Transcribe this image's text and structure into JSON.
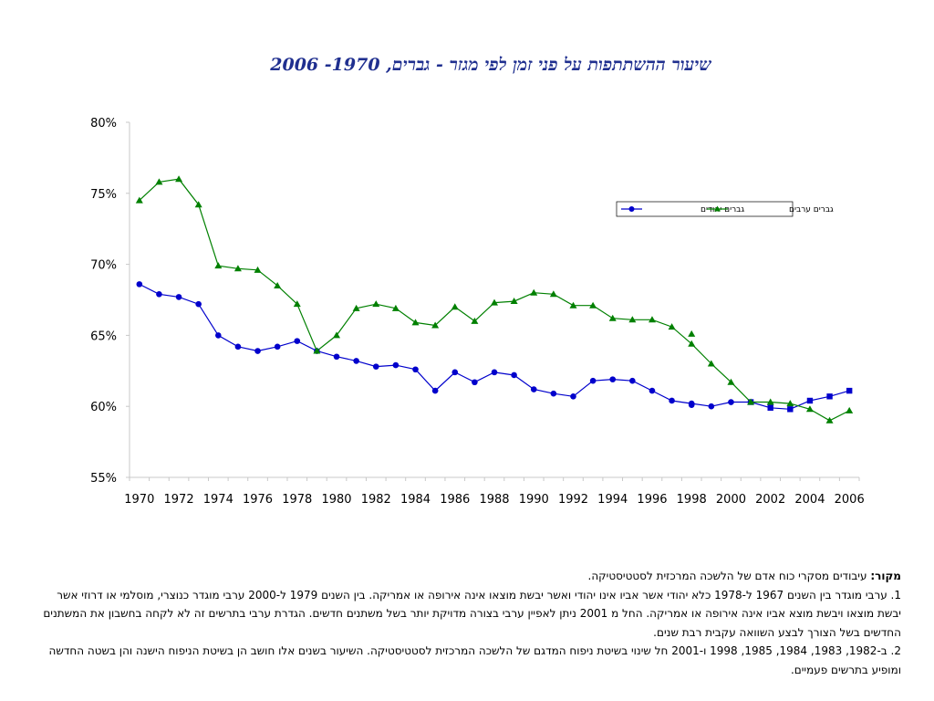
{
  "title": "שיעור ההשתתפות על פני זמן לפי מגזר - גברים, 1970- 2006",
  "chart_data": {
    "type": "line",
    "title": "שיעור ההשתתפות על פני זמן לפי מגזר - גברים, 1970- 2006",
    "x": [
      1970,
      1971,
      1972,
      1973,
      1974,
      1975,
      1976,
      1977,
      1978,
      1979,
      1980,
      1981,
      1982,
      1983,
      1984,
      1985,
      1986,
      1987,
      1988,
      1989,
      1990,
      1991,
      1992,
      1993,
      1994,
      1995,
      1996,
      1997,
      1998,
      1999,
      2000,
      2001,
      2002,
      2003,
      2004,
      2005,
      2006
    ],
    "x_ticks": [
      "1970",
      "1972",
      "1974",
      "1976",
      "1978",
      "1980",
      "1982",
      "1984",
      "1986",
      "1988",
      "1990",
      "1992",
      "1994",
      "1996",
      "1998",
      "2000",
      "2002",
      "2004",
      "2006"
    ],
    "y_ticks": [
      "80%",
      "75%",
      "70%",
      "65%",
      "60%",
      "55%"
    ],
    "ylim": [
      55,
      80
    ],
    "y_unit": "%",
    "grid": false,
    "legend_position": "top-right",
    "series": [
      {
        "name": "גברים יהודים",
        "color": "#0000cc",
        "marker": "circle",
        "marker_late": "square",
        "values": [
          68.6,
          67.9,
          67.7,
          67.2,
          65.0,
          64.2,
          63.9,
          64.2,
          64.6,
          63.9,
          63.5,
          63.2,
          62.8,
          62.9,
          62.6,
          61.1,
          62.4,
          61.7,
          62.4,
          62.2,
          61.2,
          60.9,
          60.7,
          61.8,
          61.9,
          61.8,
          61.1,
          60.4,
          60.2,
          60.0,
          60.3,
          60.3,
          59.9,
          59.8,
          60.4,
          60.7,
          61.1
        ],
        "extra_points": [
          {
            "x": 1998,
            "y": 60.1
          }
        ]
      },
      {
        "name": "גברים ערבים",
        "color": "#008000",
        "marker": "triangle",
        "values": [
          74.5,
          75.8,
          76.0,
          74.2,
          69.9,
          69.7,
          69.6,
          68.5,
          67.2,
          63.9,
          65.0,
          66.9,
          67.2,
          66.9,
          65.9,
          65.7,
          67.0,
          66.0,
          67.3,
          67.4,
          68.0,
          67.9,
          67.1,
          67.1,
          66.2,
          66.1,
          66.1,
          65.6,
          64.4,
          63.0,
          61.7,
          60.3,
          60.3,
          60.2,
          59.8,
          59.0,
          59.7
        ],
        "extra_points": [
          {
            "x": 1998,
            "y": 65.1
          }
        ]
      }
    ]
  },
  "notes": {
    "source_label": "מקור:",
    "source_text": "עיבודים מסקרי כוח אדם של הלשכה המרכזית לסטטיסטיקה.",
    "note1": "1. ערבי מוגדר בין השנים 1967 ל-1978 כלא יהודי אשר אביו אינו יהודי ואשר יבשת מוצאו אינה אירופה או אמריקה. בין השנים 1979 ל-2000 ערבי מוגדר כנוצרי, מוסלמי או דרוזי אשר יבשת מוצאו ויבשת מוצא אביו אינה אירופה או אמריקה. החל מ 2001 ניתן לאפיין ערבי בצורה מדויקת יותר בשל משתנים חדשים. הגדרת ערבי בתרשים זה לא לקחה בחשבון את המשתנים החדשים בשל הצורך לבצע השוואה עקבית רבת שנים.",
    "note2": "2. ב-1982, 1983, 1984, 1985, 1998 ו-2001 חל שינוי בשיטת ניפוח המדגם של הלשכה המרכזית לסטטיסטיקה. השיעור בשנים אלו חושב הן בשיטת הניפוח הישנה והן בשטה החדשה ומופיע בתרשים פעמיים."
  }
}
